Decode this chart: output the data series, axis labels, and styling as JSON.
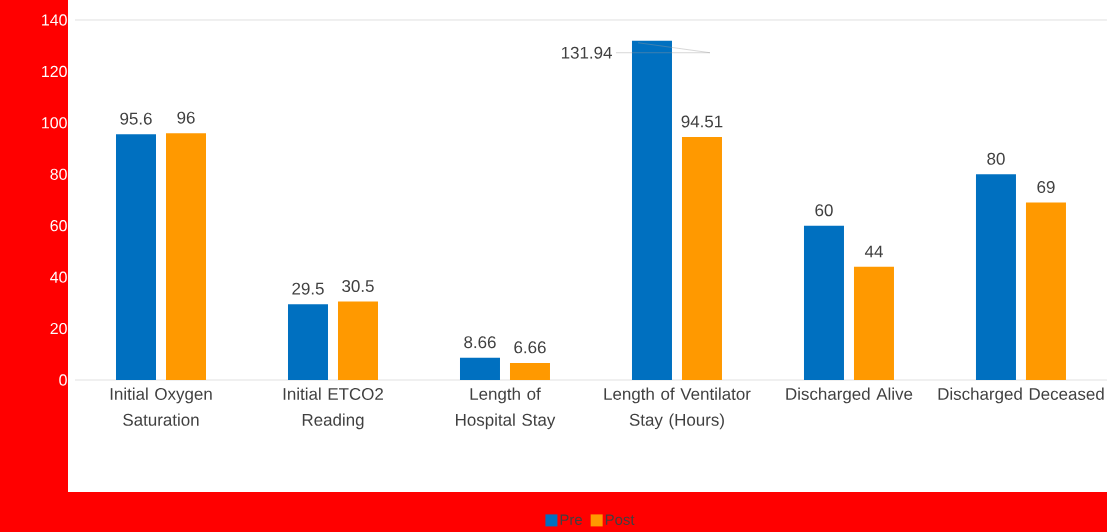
{
  "chart_data": {
    "type": "bar",
    "categories": [
      "Initial Oxygen Saturation",
      "Initial ETCO2 Reading",
      "Length of Hospital Stay",
      "Length of Ventilator Stay (Hours)",
      "Discharged Alive",
      "Discharged Deceased"
    ],
    "series": [
      {
        "name": "Pre",
        "color": "#0070c0",
        "values": [
          95.6,
          29.5,
          8.66,
          131.94,
          60,
          80
        ]
      },
      {
        "name": "Post",
        "color": "#ff9900",
        "values": [
          96,
          30.5,
          6.66,
          94.51,
          44,
          69
        ]
      }
    ],
    "ylim": [
      0,
      140
    ],
    "yticks": [
      0,
      20,
      40,
      60,
      80,
      100,
      120,
      140
    ],
    "grid": false,
    "legend": "bottom",
    "data_labels": true
  }
}
